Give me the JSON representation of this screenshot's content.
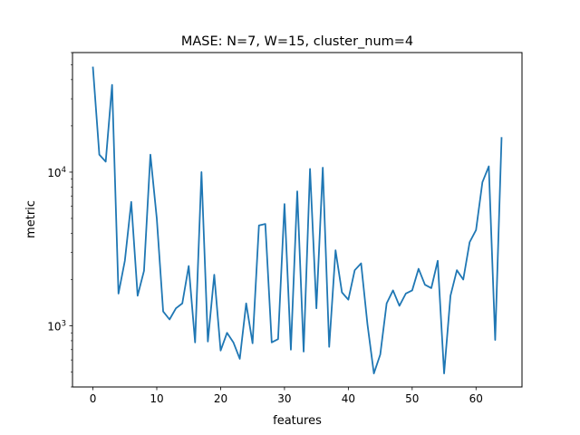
{
  "chart_data": {
    "type": "line",
    "title": "MASE: N=7, W=15, cluster_num=4",
    "xlabel": "features",
    "ylabel": "metric",
    "yscale": "log",
    "xlim": [
      -3.2,
      67.2
    ],
    "ylim": [
      400,
      60000
    ],
    "x_ticks": [
      0,
      10,
      20,
      30,
      40,
      50,
      60
    ],
    "y_major_ticks": [
      {
        "value": 1000,
        "base": "10",
        "exp": "3"
      },
      {
        "value": 10000,
        "base": "10",
        "exp": "4"
      }
    ],
    "grid": false,
    "line_color": "#1f77b4",
    "series": [
      {
        "x": [
          0,
          1,
          2,
          3,
          4,
          5,
          6,
          7,
          8,
          9,
          10,
          11,
          12,
          13,
          14,
          15,
          16,
          17,
          18,
          19,
          20,
          21,
          22,
          23,
          24,
          25,
          26,
          27,
          28,
          29,
          30,
          31,
          32,
          33,
          34,
          35,
          36,
          37,
          38,
          39,
          40,
          41,
          42,
          43,
          44,
          45,
          46,
          47,
          48,
          49,
          50,
          51,
          52,
          53,
          54,
          55,
          56,
          57,
          58,
          59,
          60,
          61,
          62,
          63,
          64
        ],
        "values": [
          48000,
          13000,
          11700,
          37000,
          1620,
          2650,
          6400,
          1570,
          2280,
          13000,
          5000,
          1240,
          1100,
          1300,
          1400,
          2450,
          780,
          10000,
          790,
          2150,
          690,
          900,
          780,
          610,
          1400,
          770,
          4500,
          4600,
          780,
          820,
          6200,
          700,
          7500,
          680,
          10500,
          1300,
          10700,
          730,
          3100,
          1650,
          1480,
          2300,
          2550,
          1020,
          490,
          650,
          1400,
          1700,
          1350,
          1620,
          1700,
          2350,
          1850,
          1760,
          2650,
          490,
          1570,
          2300,
          2000,
          3500,
          4200,
          8600,
          10900,
          810,
          16700
        ]
      }
    ]
  }
}
